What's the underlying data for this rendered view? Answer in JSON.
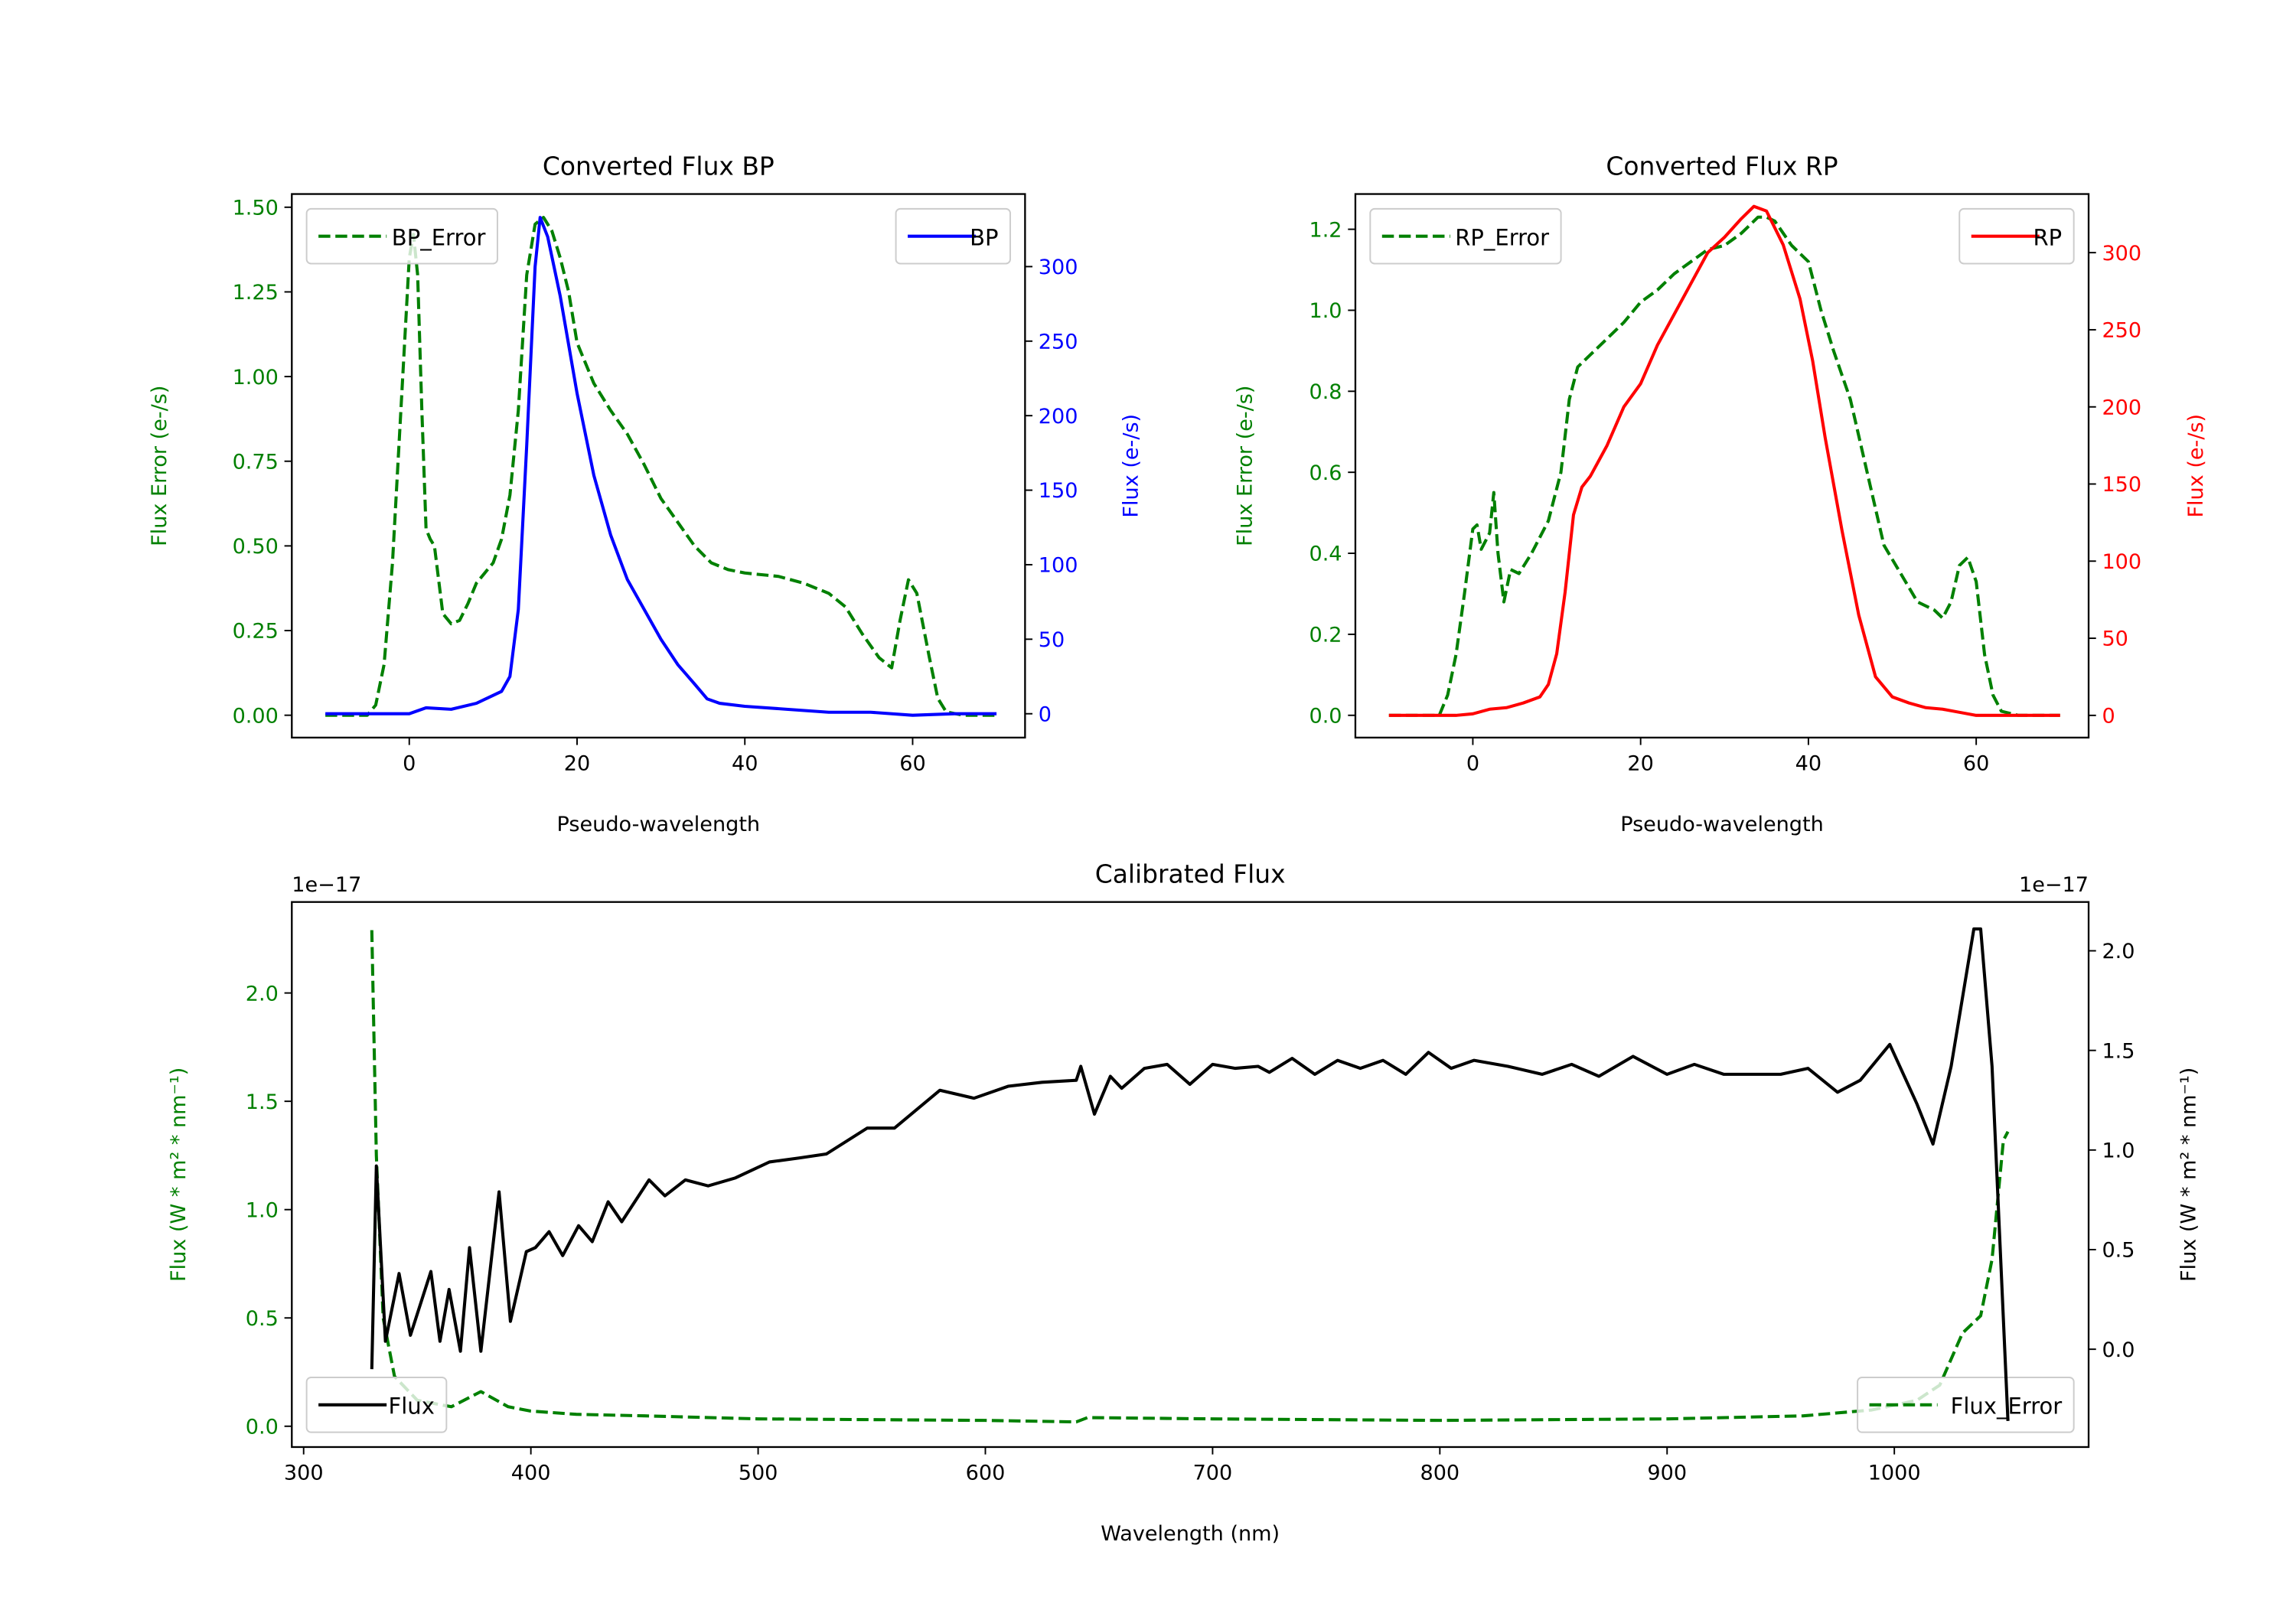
{
  "chart_data": [
    {
      "type": "line",
      "title": "Converted Flux BP",
      "xlabel": "Pseudo-wavelength",
      "ylabel_left": "Flux Error (e-/s)",
      "ylabel_right": "Flux (e-/s)",
      "xlim": [
        -14,
        73.4
      ],
      "ylim_left": [
        -0.066,
        1.539
      ],
      "ylim_right": [
        -16,
        348.7
      ],
      "x_ticks": [
        0,
        20,
        40,
        60
      ],
      "x_tick_labels": [
        "0",
        "20",
        "40",
        "60"
      ],
      "y_left_ticks": [
        0,
        0.25,
        0.5,
        0.75,
        1.0,
        1.25,
        1.5
      ],
      "y_left_tick_labels": [
        "0.00",
        "0.25",
        "0.50",
        "0.75",
        "1.00",
        "1.25",
        "1.50"
      ],
      "y_right_ticks": [
        0,
        50,
        100,
        150,
        200,
        250,
        300
      ],
      "y_right_tick_labels": [
        "0",
        "50",
        "100",
        "150",
        "200",
        "250",
        "300"
      ],
      "left_color": "#008000",
      "right_color": "#0000ff",
      "grid": false,
      "series": [
        {
          "name": "BP_Error",
          "axis": "left",
          "color": "#008000",
          "style": "dashed",
          "legend": "top-left",
          "x": [
            -10,
            -5,
            -4,
            -3,
            -2,
            -1,
            0,
            0.5,
            1,
            1.5,
            2,
            2.5,
            3,
            4,
            5,
            6,
            7,
            8,
            10,
            11,
            12,
            13,
            14,
            15,
            16,
            17,
            18,
            19,
            20,
            22,
            24,
            26,
            28,
            30,
            32,
            34,
            36,
            38,
            40,
            44,
            47,
            50,
            52,
            54,
            56,
            57.5,
            58.5,
            59.5,
            60.5,
            62,
            63,
            64,
            66,
            70
          ],
          "y": [
            0,
            0,
            0.03,
            0.15,
            0.45,
            0.9,
            1.35,
            1.42,
            1.3,
            0.9,
            0.55,
            0.52,
            0.5,
            0.3,
            0.27,
            0.28,
            0.33,
            0.39,
            0.45,
            0.52,
            0.65,
            0.9,
            1.3,
            1.45,
            1.47,
            1.43,
            1.35,
            1.25,
            1.1,
            0.98,
            0.9,
            0.83,
            0.74,
            0.64,
            0.57,
            0.5,
            0.45,
            0.43,
            0.42,
            0.41,
            0.39,
            0.36,
            0.32,
            0.24,
            0.17,
            0.14,
            0.28,
            0.4,
            0.36,
            0.17,
            0.05,
            0.01,
            0,
            0
          ]
        },
        {
          "name": "BP",
          "axis": "right",
          "color": "#0000ff",
          "style": "solid",
          "legend": "top-right",
          "x": [
            -10,
            -5,
            0,
            2,
            5,
            8,
            11,
            12,
            13,
            14,
            15,
            15.6,
            16.5,
            18,
            20,
            22,
            24,
            26,
            28,
            30,
            32,
            34,
            35.5,
            37,
            40,
            45,
            50,
            55,
            60,
            65,
            70
          ],
          "y": [
            0,
            0,
            0,
            4,
            3,
            7,
            15,
            25,
            70,
            180,
            300,
            333,
            320,
            280,
            215,
            160,
            120,
            90,
            70,
            50,
            33,
            20,
            10,
            7,
            5,
            3,
            1,
            1,
            -1,
            0,
            0
          ]
        }
      ]
    },
    {
      "type": "line",
      "title": "Converted Flux RP",
      "xlabel": "Pseudo-wavelength",
      "ylabel_left": "Flux Error (e-/s)",
      "ylabel_right": "Flux (e-/s)",
      "xlim": [
        -14,
        73.4
      ],
      "ylim_left": [
        -0.055,
        1.287
      ],
      "ylim_right": [
        -14.4,
        338
      ],
      "x_ticks": [
        0,
        20,
        40,
        60
      ],
      "x_tick_labels": [
        "0",
        "20",
        "40",
        "60"
      ],
      "y_left_ticks": [
        0,
        0.2,
        0.4,
        0.6,
        0.8,
        1.0,
        1.2
      ],
      "y_left_tick_labels": [
        "0.0",
        "0.2",
        "0.4",
        "0.6",
        "0.8",
        "1.0",
        "1.2"
      ],
      "y_right_ticks": [
        0,
        50,
        100,
        150,
        200,
        250,
        300
      ],
      "y_right_tick_labels": [
        "0",
        "50",
        "100",
        "150",
        "200",
        "250",
        "300"
      ],
      "left_color": "#008000",
      "right_color": "#ff0000",
      "grid": false,
      "series": [
        {
          "name": "RP_Error",
          "axis": "left",
          "color": "#008000",
          "style": "dashed",
          "legend": "top-left",
          "x": [
            -10,
            -4,
            -3,
            -2,
            -1,
            0,
            0.5,
            1,
            2,
            2.5,
            3,
            3.7,
            4.5,
            5.5,
            7,
            9,
            10.5,
            11.5,
            12.5,
            14,
            16,
            18,
            20,
            22,
            24,
            26,
            28,
            30,
            32,
            34,
            35,
            36,
            38,
            40,
            41.5,
            43,
            45,
            47,
            49,
            51,
            53,
            55,
            56,
            57,
            58,
            59,
            60,
            61,
            62,
            63,
            65,
            70
          ],
          "y": [
            0,
            0,
            0.05,
            0.15,
            0.3,
            0.46,
            0.47,
            0.41,
            0.45,
            0.55,
            0.4,
            0.28,
            0.36,
            0.35,
            0.4,
            0.48,
            0.6,
            0.78,
            0.86,
            0.89,
            0.93,
            0.97,
            1.02,
            1.05,
            1.09,
            1.12,
            1.15,
            1.16,
            1.19,
            1.23,
            1.23,
            1.22,
            1.16,
            1.12,
            1.0,
            0.9,
            0.78,
            0.6,
            0.42,
            0.35,
            0.28,
            0.26,
            0.24,
            0.28,
            0.37,
            0.39,
            0.33,
            0.15,
            0.05,
            0.01,
            0,
            0
          ]
        },
        {
          "name": "RP",
          "axis": "right",
          "color": "#ff0000",
          "style": "solid",
          "legend": "top-right",
          "x": [
            -10,
            -2,
            0,
            2,
            4,
            6,
            8,
            9,
            10,
            11,
            12,
            13,
            14,
            16,
            18,
            20,
            22,
            24,
            26,
            28,
            30,
            32,
            33.5,
            35,
            37,
            39,
            40.5,
            42,
            44,
            46,
            48,
            50,
            52,
            54,
            56,
            58,
            60,
            70
          ],
          "y": [
            0,
            0,
            1,
            4,
            5,
            8,
            12,
            20,
            40,
            80,
            130,
            148,
            155,
            175,
            200,
            215,
            240,
            260,
            280,
            300,
            310,
            322,
            330,
            327,
            305,
            270,
            230,
            180,
            120,
            65,
            25,
            12,
            8,
            5,
            4,
            2,
            0,
            0
          ]
        }
      ]
    },
    {
      "type": "line",
      "title": "Calibrated Flux",
      "xlabel": "Wavelength (nm)",
      "ylabel_left": "Flux (W * m² * nm⁻¹)",
      "ylabel_right": "Flux (W * m² * nm⁻¹)",
      "offset_left": "1e−17",
      "offset_right": "1e−17",
      "xlim": [
        294.8,
        1085.5
      ],
      "ylim_left": [
        -0.096,
        2.42
      ],
      "ylim_right": [
        -0.491,
        2.245
      ],
      "x_ticks": [
        300,
        400,
        500,
        600,
        700,
        800,
        900,
        1000
      ],
      "x_tick_labels": [
        "300",
        "400",
        "500",
        "600",
        "700",
        "800",
        "900",
        "1000"
      ],
      "y_left_ticks": [
        0,
        0.5,
        1.0,
        1.5,
        2.0
      ],
      "y_left_tick_labels": [
        "0.0",
        "0.5",
        "1.0",
        "1.5",
        "2.0"
      ],
      "y_right_ticks": [
        0,
        0.5,
        1.0,
        1.5,
        2.0
      ],
      "y_right_tick_labels": [
        "0.0",
        "0.5",
        "1.0",
        "1.5",
        "2.0"
      ],
      "left_color": "#008000",
      "right_color": "#000000",
      "grid": false,
      "series": [
        {
          "name": "Flux_Error",
          "axis": "left",
          "color": "#008000",
          "style": "dashed",
          "legend": "bottom-right",
          "x": [
            330,
            332,
            335,
            340,
            350,
            365,
            378,
            390,
            400,
            420,
            450,
            500,
            600,
            640,
            645,
            700,
            800,
            900,
            960,
            990,
            1010,
            1020,
            1030,
            1038,
            1043,
            1048,
            1050
          ],
          "y": [
            2.29,
            1.25,
            0.5,
            0.23,
            0.12,
            0.09,
            0.16,
            0.09,
            0.07,
            0.055,
            0.048,
            0.034,
            0.027,
            0.02,
            0.04,
            0.034,
            0.027,
            0.034,
            0.048,
            0.075,
            0.12,
            0.19,
            0.43,
            0.51,
            0.77,
            1.32,
            1.36
          ]
        },
        {
          "name": "Flux",
          "axis": "right",
          "color": "#000000",
          "style": "solid",
          "legend": "bottom-left",
          "x": [
            330,
            332,
            336,
            342,
            347,
            356,
            360,
            364,
            369,
            373,
            378,
            386,
            391,
            398,
            402,
            408,
            414,
            421,
            427,
            434,
            440,
            452,
            459,
            468,
            478,
            490,
            505,
            518,
            530,
            548,
            560,
            580,
            595,
            610,
            625,
            640,
            642,
            648,
            655,
            660,
            670,
            680,
            690,
            700,
            710,
            720,
            725,
            735,
            745,
            755,
            765,
            775,
            785,
            795,
            805,
            815,
            830,
            845,
            858,
            870,
            885,
            900,
            912,
            925,
            950,
            962,
            975,
            985,
            998,
            1010,
            1017,
            1025,
            1035,
            1038,
            1043,
            1050
          ],
          "y": [
            -0.1,
            0.92,
            0.04,
            0.38,
            0.07,
            0.39,
            0.04,
            0.3,
            -0.01,
            0.51,
            -0.01,
            0.79,
            0.14,
            0.49,
            0.51,
            0.59,
            0.47,
            0.62,
            0.54,
            0.74,
            0.64,
            0.85,
            0.77,
            0.85,
            0.82,
            0.86,
            0.94,
            0.96,
            0.98,
            1.11,
            1.11,
            1.3,
            1.26,
            1.32,
            1.34,
            1.35,
            1.42,
            1.18,
            1.37,
            1.31,
            1.41,
            1.43,
            1.33,
            1.43,
            1.41,
            1.42,
            1.39,
            1.46,
            1.38,
            1.45,
            1.41,
            1.45,
            1.38,
            1.49,
            1.41,
            1.45,
            1.42,
            1.38,
            1.43,
            1.37,
            1.47,
            1.38,
            1.43,
            1.38,
            1.38,
            1.41,
            1.29,
            1.35,
            1.53,
            1.23,
            1.03,
            1.42,
            2.11,
            2.11,
            1.42,
            -0.36
          ]
        }
      ]
    }
  ]
}
